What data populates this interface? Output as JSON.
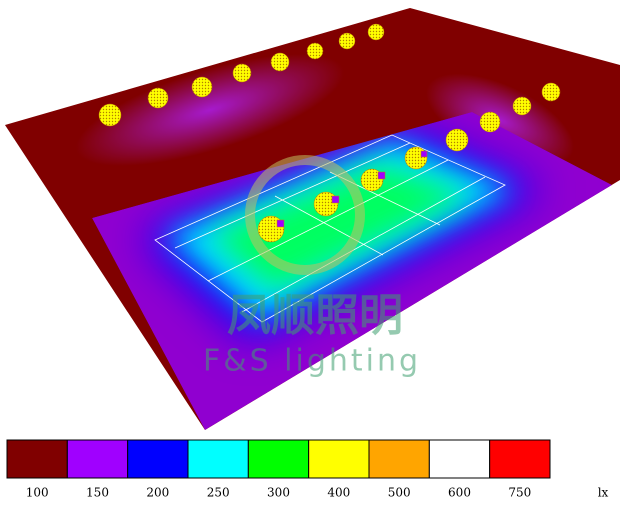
{
  "watermark": {
    "brand_cn": "凤顺照明",
    "brand_en": "F&S lighting"
  },
  "legend": {
    "unit": "lx",
    "steps": [
      {
        "label": "100",
        "color": "#800000"
      },
      {
        "label": "150",
        "color": "#a000ff"
      },
      {
        "label": "200",
        "color": "#0000ff"
      },
      {
        "label": "250",
        "color": "#00ffff"
      },
      {
        "label": "300",
        "color": "#00ff00"
      },
      {
        "label": "400",
        "color": "#ffff00"
      },
      {
        "label": "500",
        "color": "#ffa500"
      },
      {
        "label": "600",
        "color": "#ffffff"
      },
      {
        "label": "750",
        "color": "#ff0000"
      }
    ]
  }
}
